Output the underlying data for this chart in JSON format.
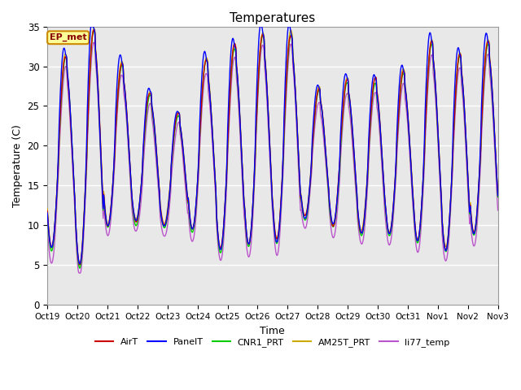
{
  "title": "Temperatures",
  "xlabel": "Time",
  "ylabel": "Temperature (C)",
  "ylim": [
    0,
    35
  ],
  "yticks": [
    0,
    5,
    10,
    15,
    20,
    25,
    30,
    35
  ],
  "series_colors": {
    "AirT": "#cc0000",
    "PanelT": "#0000ff",
    "CNR1_PRT": "#00cc00",
    "AM25T_PRT": "#ccaa00",
    "li77_temp": "#bb55cc"
  },
  "legend_colors": [
    "#cc0000",
    "#0000ff",
    "#00cc00",
    "#ccaa00",
    "#bb55cc"
  ],
  "x_tick_labels": [
    "Oct 19",
    "Oct 20",
    "Oct 21",
    "Oct 22",
    "Oct 23",
    "Oct 24",
    "Oct 25",
    "Oct 26",
    "Oct 27",
    "Oct 28",
    "Oct 29",
    "Oct 30",
    "Oct 31",
    "Nov 1",
    "Nov 2",
    "Nov 3"
  ],
  "annotation_text": "EP_met",
  "annotation_bg": "#ffff99",
  "annotation_border": "#cc8800",
  "plot_bg": "#e8e8e8",
  "grid_color": "#ffffff",
  "n_days": 16
}
